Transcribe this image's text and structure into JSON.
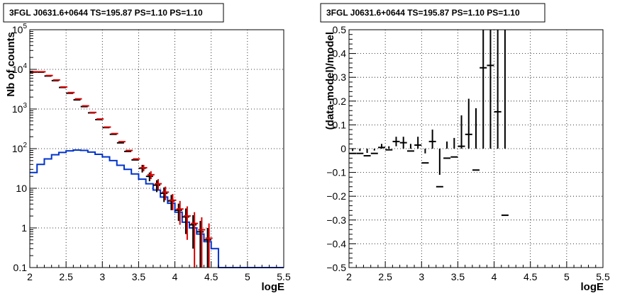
{
  "left_panel": {
    "title": "3FGL J0631.6+0644 TS=195.87 PS=1.10 PS=1.10",
    "xlabel": "logE",
    "ylabel": "Nb of counts",
    "xticks": [
      "2",
      "2.5",
      "3",
      "3.5",
      "4",
      "4.5",
      "5",
      "5.5"
    ],
    "yticks": [
      {
        "base": "10",
        "exp": "−1",
        "plain": "0.1"
      },
      {
        "base": "1",
        "exp": "",
        "plain": "1"
      },
      {
        "base": "10",
        "exp": "",
        "plain": "10"
      },
      {
        "base": "10",
        "exp": "2",
        "plain": ""
      },
      {
        "base": "10",
        "exp": "3",
        "plain": ""
      },
      {
        "base": "10",
        "exp": "4",
        "plain": ""
      },
      {
        "base": "10",
        "exp": "5",
        "plain": ""
      }
    ]
  },
  "right_panel": {
    "title": "3FGL J0631.6+0644 TS=195.87 PS=1.10 PS=1.10",
    "xlabel": "logE",
    "ylabel": "(data-model)/model",
    "xticks": [
      "2",
      "2.5",
      "3",
      "3.5",
      "4",
      "4.5",
      "5",
      "5.5"
    ],
    "yticks": [
      "−0.5",
      "−0.4",
      "−0.3",
      "−0.2",
      "−0.1",
      "0",
      "0.1",
      "0.2",
      "0.3",
      "0.4",
      "0.5"
    ]
  },
  "colors": {
    "data": "#000000",
    "total_model": "#dd0000",
    "source_model": "#0033cc"
  },
  "chart_data": [
    {
      "type": "scatter",
      "title": "3FGL J0631.6+0644 TS=195.87 PS=1.10 PS=1.10",
      "xlabel": "logE",
      "ylabel": "Nb of counts",
      "xlim": [
        2,
        5.5
      ],
      "ylim": [
        0.1,
        100000
      ],
      "yscale": "log",
      "grid": true,
      "bin_width": 0.1,
      "series": [
        {
          "style": "histogram",
          "x": [
            2.0,
            2.1,
            2.2,
            2.3,
            2.4,
            2.5,
            2.6,
            2.7,
            2.8,
            2.9,
            3.0,
            3.1,
            3.2,
            3.3,
            3.4,
            3.5,
            3.6,
            3.7,
            3.8,
            3.9,
            4.0,
            4.1,
            4.2,
            4.3,
            4.4,
            4.5,
            4.6,
            4.7,
            4.8,
            4.9,
            5.0,
            5.1,
            5.2,
            5.3,
            5.4
          ],
          "y": [
            25,
            40,
            55,
            70,
            80,
            88,
            92,
            90,
            82,
            72,
            62,
            50,
            38,
            30,
            23,
            17,
            13,
            9,
            6,
            4.2,
            2.5,
            1.4,
            1.0,
            0.7,
            0.45,
            0.3,
            0.1,
            0.1,
            0.1,
            0.1,
            0.1,
            0.1,
            0.1,
            0.1,
            0.1
          ]
        },
        {
          "style": "error-bars",
          "x": [
            2.05,
            2.15,
            2.25,
            2.35,
            2.45,
            2.55,
            2.65,
            2.75,
            2.85,
            2.95,
            3.05,
            3.15,
            3.25,
            3.35,
            3.45,
            3.55,
            3.65,
            3.75,
            3.85,
            3.95,
            4.05,
            4.15,
            4.25,
            4.35,
            4.45
          ],
          "y": [
            8500,
            8500,
            6800,
            5200,
            3500,
            2500,
            1700,
            1150,
            800,
            540,
            340,
            230,
            140,
            85,
            52,
            32,
            20,
            12,
            7.5,
            4.8,
            2.8,
            1.9,
            1.2,
            0.8,
            0.5
          ],
          "yerr": [
            0,
            0,
            0,
            0,
            0,
            0,
            0,
            0,
            0,
            0,
            0,
            0,
            0,
            0,
            0,
            7,
            5,
            4,
            3,
            2,
            1.3,
            1.2,
            0.9,
            0.7,
            0.5
          ]
        },
        {
          "style": "error-bars",
          "x": [
            2.05,
            2.15,
            2.25,
            2.35,
            2.45,
            2.55,
            2.65,
            2.75,
            2.85,
            2.95,
            3.05,
            3.15,
            3.25,
            3.35,
            3.45,
            3.55,
            3.65,
            3.75,
            3.85,
            3.95,
            4.05,
            4.15,
            4.25,
            4.35,
            4.45
          ],
          "y": [
            8700,
            8700,
            7000,
            5400,
            3600,
            2600,
            1800,
            1200,
            820,
            560,
            350,
            240,
            150,
            90,
            55,
            33,
            22,
            13,
            8,
            5,
            3,
            2,
            1.3,
            0.9,
            0.55
          ],
          "yerr": [
            0,
            0,
            0,
            0,
            0,
            0,
            0,
            0,
            0,
            0,
            0,
            0,
            0,
            0,
            0,
            6,
            5,
            4,
            3,
            2.2,
            1.8,
            1.5,
            1.2,
            0.95,
            0.75
          ]
        }
      ]
    },
    {
      "type": "scatter",
      "title": "3FGL J0631.6+0644 TS=195.87 PS=1.10 PS=1.10",
      "xlabel": "logE",
      "ylabel": "(data-model)/model",
      "xlim": [
        2,
        5.5
      ],
      "ylim": [
        -0.5,
        0.5
      ],
      "grid": true,
      "series": [
        {
          "style": "error-bars",
          "x": [
            2.05,
            2.15,
            2.25,
            2.35,
            2.45,
            2.55,
            2.65,
            2.75,
            2.85,
            2.95,
            3.05,
            3.15,
            3.25,
            3.35,
            3.45,
            3.55,
            3.65,
            3.75,
            3.85,
            3.95,
            4.05,
            4.15
          ],
          "y": [
            -0.02,
            -0.02,
            -0.03,
            -0.02,
            0.005,
            -0.005,
            0.03,
            0.025,
            -0.01,
            0.015,
            -0.06,
            0.03,
            -0.16,
            -0.04,
            -0.035,
            0.01,
            0.06,
            -0.09,
            0.34,
            0.35,
            0.155,
            -0.28
          ],
          "yerr": [
            0.01,
            0.01,
            0.012,
            0.012,
            0.015,
            0.015,
            0.02,
            0.025,
            0.03,
            0.035,
            0.04,
            0.05,
            0.05,
            0.07,
            0.08,
            0.13,
            0.15,
            0.26,
            0.55,
            0.58,
            0.8,
            1.0
          ]
        }
      ]
    }
  ]
}
